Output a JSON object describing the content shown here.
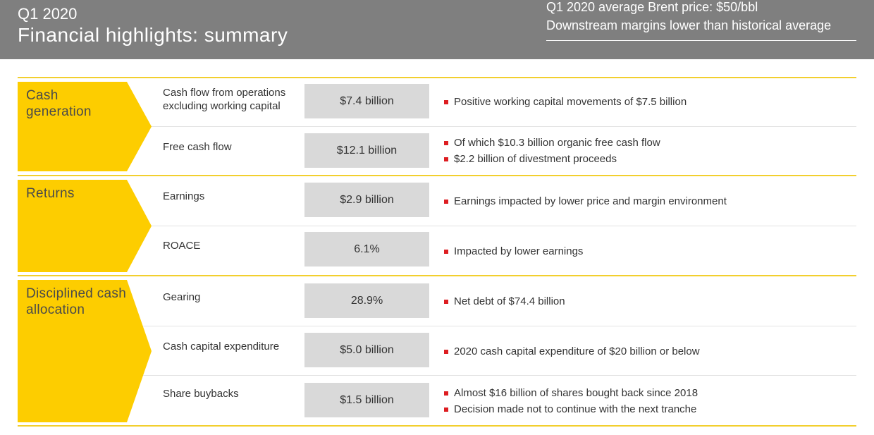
{
  "header": {
    "subtitle": "Q1 2020",
    "title": "Financial highlights: summary",
    "right_line1": "Q1 2020 average Brent price: $50/bbl",
    "right_line2": "Downstream margins lower than historical average"
  },
  "colors": {
    "header_bg": "#7f7f7f",
    "chevron": "#fdcd00",
    "divider": "#f2cf2e",
    "bullet": "#dd1d21",
    "value_box": "#d9d9d9"
  },
  "sections": [
    {
      "label": "Cash generation",
      "rows": [
        {
          "metric": "Cash flow from operations excluding working capital",
          "value": "$7.4 billion",
          "notes": [
            "Positive working capital movements of $7.5 billion"
          ]
        },
        {
          "metric": "Free cash flow",
          "value": "$12.1 billion",
          "notes": [
            "Of which $10.3 billion organic free cash flow",
            "$2.2 billion of divestment proceeds"
          ]
        }
      ]
    },
    {
      "label": "Returns",
      "rows": [
        {
          "metric": "Earnings",
          "value": "$2.9 billion",
          "notes": [
            "Earnings impacted by lower price and margin environment"
          ]
        },
        {
          "metric": "ROACE",
          "value": "6.1%",
          "notes": [
            "Impacted by lower earnings"
          ]
        }
      ]
    },
    {
      "label": "Disciplined cash allocation",
      "rows": [
        {
          "metric": "Gearing",
          "value": "28.9%",
          "notes": [
            "Net debt of $74.4 billion"
          ]
        },
        {
          "metric": "Cash capital expenditure",
          "value": "$5.0 billion",
          "notes": [
            "2020 cash capital expenditure of $20 billion or below"
          ]
        },
        {
          "metric": "Share buybacks",
          "value": "$1.5 billion",
          "notes": [
            "Almost $16 billion of shares bought back since 2018",
            "Decision made not to continue with the next tranche"
          ]
        }
      ]
    }
  ]
}
